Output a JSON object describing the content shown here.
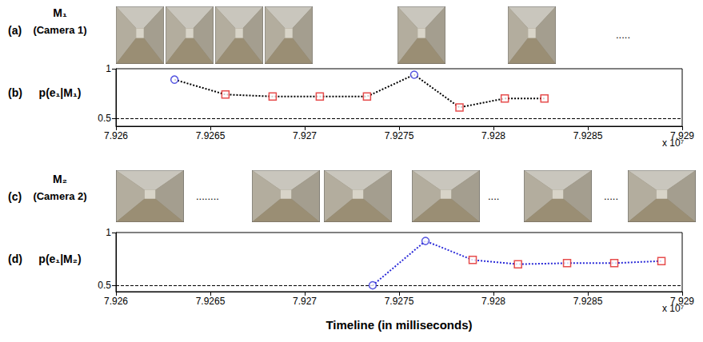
{
  "photo_strips": [
    {
      "letter": "(a)",
      "name": "M₁",
      "caption": "(Camera 1)",
      "items": [
        null,
        null,
        null,
        null,
        null,
        null,
        "....."
      ]
    },
    {
      "letter": "(c)",
      "name": "M₂",
      "caption": "(Camera 2)",
      "items": [
        null,
        "........",
        null,
        null,
        null,
        "....",
        null,
        ".....",
        null
      ]
    }
  ],
  "chart_data": [
    {
      "type": "line",
      "panel_letter": "(b)",
      "ylabel": "p(e₁|M₁)",
      "annotations": [
        "x 10⁷"
      ],
      "xlim": [
        7.926,
        7.929
      ],
      "xticks": [
        7.926,
        7.9265,
        7.927,
        7.9275,
        7.928,
        7.9285,
        7.929
      ],
      "ylim": [
        0.42,
        1
      ],
      "yticks": [
        0.5,
        1
      ],
      "grid": true,
      "series": [
        {
          "type": "line",
          "color": "#000000",
          "line_style": "dotted",
          "marker": "none",
          "x": [
            7.92631,
            7.92658,
            7.92683,
            7.92708,
            7.92733,
            7.92758,
            7.92782,
            7.92806,
            7.92827
          ],
          "values": [
            0.89,
            0.74,
            0.72,
            0.72,
            0.72,
            0.94,
            0.61,
            0.7,
            0.7
          ]
        },
        {
          "type": "scatter",
          "color": "#2a2ad8",
          "marker": "circle",
          "x": [
            7.92631,
            7.92758
          ],
          "values": [
            0.89,
            0.94
          ]
        },
        {
          "type": "scatter",
          "color": "#e02020",
          "marker": "square",
          "x": [
            7.92658,
            7.92683,
            7.92708,
            7.92733,
            7.92782,
            7.92806,
            7.92827
          ],
          "values": [
            0.74,
            0.72,
            0.72,
            0.72,
            0.61,
            0.7,
            0.7
          ]
        }
      ]
    },
    {
      "type": "line",
      "panel_letter": "(d)",
      "ylabel": "p(e₁|M₂)",
      "xlabel": "Timeline (in milliseconds)",
      "annotations": [
        "x 10⁷"
      ],
      "xlim": [
        7.926,
        7.929
      ],
      "xticks": [
        7.926,
        7.9265,
        7.927,
        7.9275,
        7.928,
        7.9285,
        7.929
      ],
      "ylim": [
        0.44,
        1
      ],
      "yticks": [
        0.5,
        1
      ],
      "grid": true,
      "series": [
        {
          "type": "line",
          "color": "#2a2ad8",
          "line_style": "dotted",
          "marker": "none",
          "x": [
            7.92736,
            7.92764,
            7.92789,
            7.92813,
            7.92839,
            7.92864,
            7.92889
          ],
          "values": [
            0.5,
            0.92,
            0.74,
            0.7,
            0.71,
            0.71,
            0.73
          ]
        },
        {
          "type": "scatter",
          "color": "#2a2ad8",
          "marker": "circle",
          "x": [
            7.92736,
            7.92764
          ],
          "values": [
            0.5,
            0.92
          ]
        },
        {
          "type": "scatter",
          "color": "#e02020",
          "marker": "square",
          "x": [
            7.92789,
            7.92813,
            7.92839,
            7.92864,
            7.92889
          ],
          "values": [
            0.74,
            0.7,
            0.71,
            0.71,
            0.73
          ]
        }
      ]
    }
  ]
}
